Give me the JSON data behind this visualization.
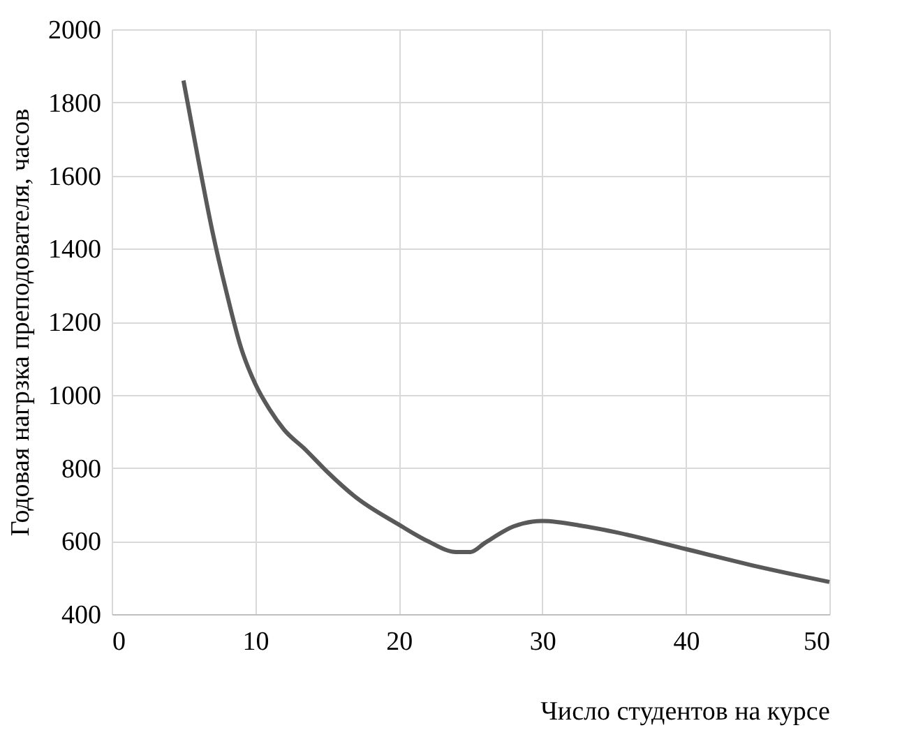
{
  "chart_data": {
    "type": "line",
    "xlabel": "Число студентов на курсе",
    "ylabel": "Годовая нагрзка преподователя, часов",
    "x": [
      5,
      6,
      7,
      8,
      9,
      10,
      11,
      12,
      13.5,
      15,
      17,
      20,
      22,
      24,
      25,
      26,
      28,
      30,
      33,
      35,
      40,
      45,
      50
    ],
    "series": [
      {
        "color": "#595959",
        "values": [
          1860,
          1650,
          1450,
          1280,
          1130,
          1030,
          960,
          905,
          850,
          790,
          720,
          645,
          600,
          570,
          570,
          595,
          640,
          655,
          640,
          625,
          578,
          530,
          488
        ]
      }
    ],
    "xlim": [
      0,
      50
    ],
    "xticks": [
      0,
      10,
      20,
      30,
      40,
      50
    ],
    "ylim": [
      400,
      2000
    ],
    "yticks": [
      400,
      600,
      800,
      1000,
      1200,
      1400,
      1600,
      1800,
      2000
    ],
    "grid": true,
    "marker": "none",
    "line_style": "solid"
  }
}
